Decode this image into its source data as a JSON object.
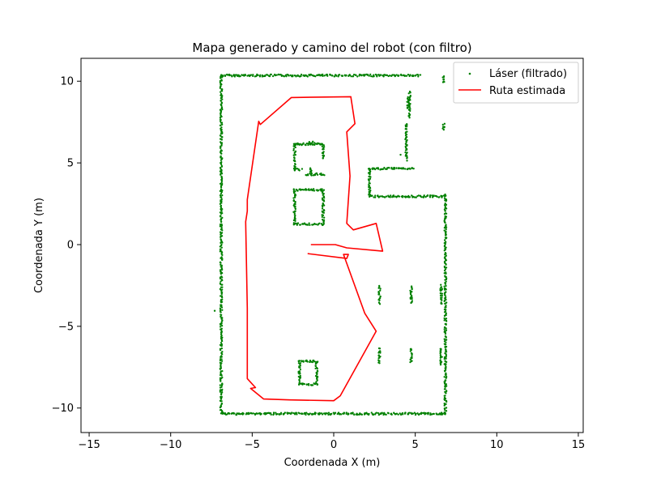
{
  "chart_data": {
    "type": "scatter",
    "title": "Mapa generado y camino del robot (con filtro)",
    "xlabel": "Coordenada X (m)",
    "ylabel": "Coordenada Y (m)",
    "xlim": [
      -15.5,
      15.3
    ],
    "ylim": [
      -11.5,
      11.4
    ],
    "xticks": [
      -15,
      -10,
      -5,
      0,
      5,
      10,
      15
    ],
    "xtick_labels": [
      "−15",
      "−10",
      "−5",
      "0",
      "5",
      "10",
      "15"
    ],
    "yticks": [
      -10,
      -5,
      0,
      5,
      10
    ],
    "ytick_labels": [
      "−10",
      "−5",
      "0",
      "5",
      "10"
    ],
    "grid": false,
    "legend_position": "top-right",
    "colors": {
      "laser": "#008000",
      "route": "#ff0000"
    },
    "series": [
      {
        "name": "Láser (filtrado)",
        "kind": "scatter",
        "color": "#008000",
        "segments": [
          [
            [
              -6.9,
              10.35
            ],
            [
              5.3,
              10.35
            ]
          ],
          [
            [
              -6.9,
              10.35
            ],
            [
              -6.9,
              -10.35
            ]
          ],
          [
            [
              -6.9,
              -10.35
            ],
            [
              6.85,
              -10.35
            ]
          ],
          [
            [
              6.85,
              -10.35
            ],
            [
              6.85,
              3.1
            ]
          ],
          [
            [
              2.2,
              2.95
            ],
            [
              6.85,
              2.95
            ]
          ],
          [
            [
              2.2,
              2.95
            ],
            [
              2.2,
              4.65
            ]
          ],
          [
            [
              2.2,
              4.65
            ],
            [
              4.8,
              4.65
            ]
          ],
          [
            [
              4.45,
              7.4
            ],
            [
              4.45,
              5.2
            ]
          ],
          [
            [
              4.65,
              9.4
            ],
            [
              4.65,
              7.8
            ]
          ],
          [
            [
              4.55,
              9.0
            ],
            [
              4.55,
              8.4
            ]
          ],
          [
            [
              6.75,
              10.3
            ],
            [
              6.75,
              9.9
            ]
          ],
          [
            [
              6.75,
              7.35
            ],
            [
              6.75,
              7.05
            ]
          ],
          [
            [
              -2.4,
              3.35
            ],
            [
              -0.65,
              3.35
            ]
          ],
          [
            [
              -0.65,
              3.35
            ],
            [
              -0.65,
              1.25
            ]
          ],
          [
            [
              -0.65,
              1.25
            ],
            [
              -2.4,
              1.25
            ]
          ],
          [
            [
              -2.4,
              1.25
            ],
            [
              -2.4,
              3.35
            ]
          ],
          [
            [
              -2.4,
              6.15
            ],
            [
              -0.65,
              6.15
            ]
          ],
          [
            [
              -0.65,
              6.15
            ],
            [
              -0.65,
              5.25
            ]
          ],
          [
            [
              -2.4,
              6.15
            ],
            [
              -2.4,
              4.6
            ]
          ],
          [
            [
              -2.4,
              4.6
            ],
            [
              -2.0,
              4.6
            ]
          ],
          [
            [
              -1.5,
              6.25
            ],
            [
              -1.2,
              6.25
            ]
          ],
          [
            [
              -1.7,
              4.3
            ],
            [
              -0.6,
              4.3
            ]
          ],
          [
            [
              -1.4,
              4.7
            ],
            [
              -1.4,
              4.3
            ]
          ],
          [
            [
              -2.1,
              -7.15
            ],
            [
              -1.05,
              -7.15
            ]
          ],
          [
            [
              -1.05,
              -7.15
            ],
            [
              -1.05,
              -8.55
            ]
          ],
          [
            [
              -1.05,
              -8.55
            ],
            [
              -2.1,
              -8.55
            ]
          ],
          [
            [
              -2.1,
              -8.55
            ],
            [
              -2.1,
              -7.15
            ]
          ],
          [
            [
              2.8,
              -2.55
            ],
            [
              2.8,
              -3.6
            ]
          ],
          [
            [
              4.75,
              -2.55
            ],
            [
              4.75,
              -3.6
            ]
          ],
          [
            [
              6.6,
              -2.5
            ],
            [
              6.6,
              -3.6
            ]
          ],
          [
            [
              2.8,
              -6.35
            ],
            [
              2.8,
              -7.25
            ]
          ],
          [
            [
              4.75,
              -6.35
            ],
            [
              4.75,
              -7.25
            ]
          ],
          [
            [
              6.6,
              -6.35
            ],
            [
              6.6,
              -7.35
            ]
          ]
        ],
        "points": [
          [
            -7.3,
            -4.05
          ],
          [
            4.1,
            5.5
          ],
          [
            4.9,
            4.65
          ]
        ]
      },
      {
        "name": "Ruta estimada",
        "kind": "line",
        "color": "#ff0000",
        "x": [
          -1.4,
          0.1,
          0.8,
          3.0,
          2.6,
          1.2,
          0.8,
          1.0,
          0.8,
          1.3,
          1.05,
          -2.6,
          -4.5,
          -4.6,
          -5.3,
          -5.3,
          -5.4,
          -5.3,
          -5.3,
          -4.8,
          -5.1,
          -4.3,
          -2.7,
          0.0,
          0.4,
          2.6,
          1.9,
          0.6,
          0.9,
          0.8,
          -1.6
        ],
        "y": [
          0.0,
          0.0,
          -0.2,
          -0.4,
          1.3,
          0.9,
          1.3,
          4.2,
          6.9,
          7.4,
          9.05,
          9.0,
          7.35,
          7.55,
          2.75,
          2.05,
          1.4,
          -3.9,
          -8.2,
          -8.75,
          -8.8,
          -9.45,
          -9.5,
          -9.55,
          -9.25,
          -5.3,
          -4.2,
          -0.6,
          -0.6,
          -0.85,
          -0.55
        ]
      }
    ]
  }
}
